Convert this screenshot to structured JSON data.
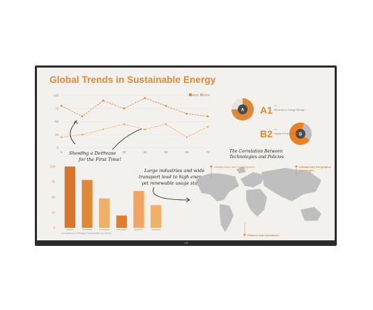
{
  "title": "Global Trends in Sustainable Energy",
  "logo": "LG",
  "colors": {
    "accent": "#e0883a",
    "dark_orange": "#d9742a",
    "light_orange": "#f0b06a",
    "grid": "#e3dfda",
    "map": "#bfbfbf",
    "dark": "#4a4a4a"
  },
  "chart_data": [
    {
      "type": "line",
      "legend": [
        "KO1",
        "KO2"
      ],
      "legend_position": "top-right",
      "x": [
        0,
        10,
        20,
        30,
        40,
        50,
        60,
        70
      ],
      "xticks": [
        "0",
        "10",
        "20",
        "30",
        "40",
        "50",
        "60",
        "70"
      ],
      "yticks": [
        "0",
        "25",
        "50",
        "75",
        "100"
      ],
      "ylim": [
        0,
        100
      ],
      "grid": true,
      "series": [
        {
          "name": "KO1",
          "values": [
            80,
            60,
            90,
            75,
            95,
            80,
            65,
            60
          ]
        },
        {
          "name": "KO2",
          "values": [
            20,
            25,
            35,
            45,
            35,
            45,
            20,
            40
          ]
        }
      ]
    },
    {
      "type": "bar",
      "categories": [
        "Weather",
        "Renewable",
        "Fluctuations",
        "Field areas",
        "Business",
        "Agriculture"
      ],
      "values": [
        100,
        78,
        48,
        20,
        60,
        37
      ],
      "yticks": [
        "0",
        "25",
        "50",
        "75",
        "100"
      ],
      "ylim": [
        0,
        100
      ],
      "xlabel": "Comparison of Energy Consumption by Sector"
    }
  ],
  "pies": [
    {
      "letter": "A",
      "label": "A1",
      "desc": "Efficiency in Energy Storage",
      "fraction": 0.75
    },
    {
      "letter": "B",
      "label": "B2",
      "desc": "Impact of Energy Policies",
      "fraction": 0.7
    }
  ],
  "annotations": {
    "arrow_note_line1": "Showing a Decrease",
    "arrow_note_line2": "for the First Time!",
    "industries_line1": "Large industries and wide",
    "industries_line2": "transport lead to high energy use,",
    "industries_line3": "yet renewable usage stays low!",
    "correlation_line1": "The Correlation Between",
    "correlation_line2": "Technologies and Policies"
  },
  "map_labels": {
    "infrastructure": "Infrastructure and Grid Upgrades",
    "climate_line1": "Climate and Geographic",
    "climate_line2": "Challenges",
    "finance": "Finance and Investment"
  }
}
